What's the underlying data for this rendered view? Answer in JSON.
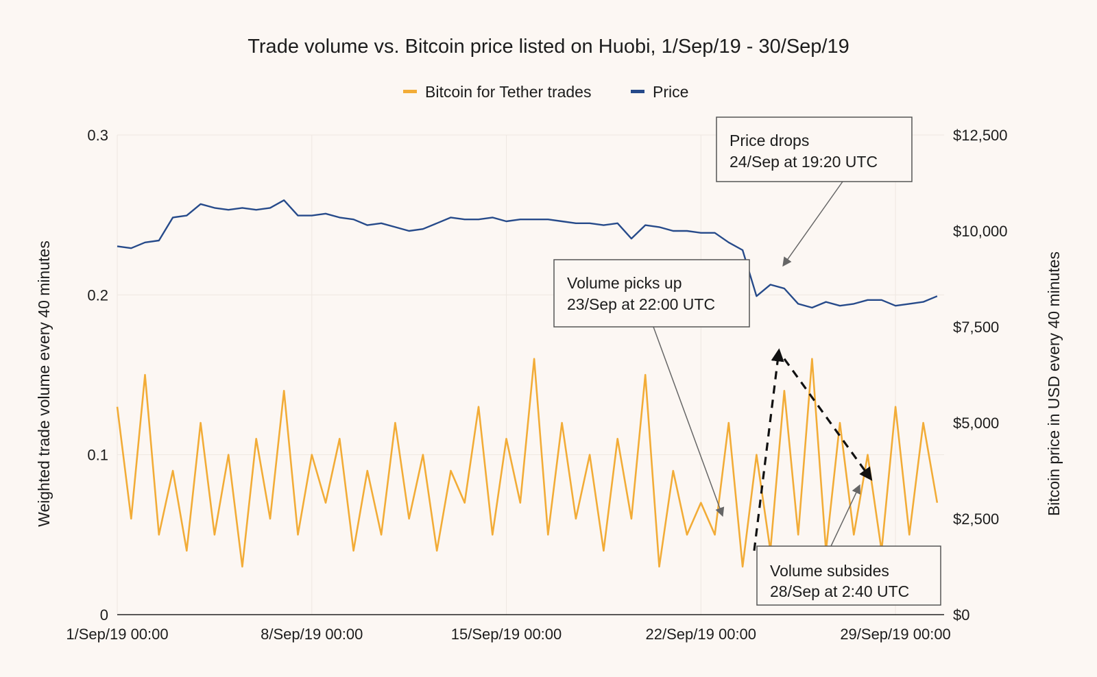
{
  "chart_data": {
    "type": "line",
    "title": "Trade volume vs. Bitcoin price listed on Huobi, 1/Sep/19 - 30/Sep/19",
    "legend": {
      "position": "top-center",
      "entries": [
        "Bitcoin for Tether trades",
        "Price"
      ]
    },
    "grid": true,
    "x_axis": {
      "type": "date",
      "range": [
        "2019-09-01 00:00",
        "2019-09-30 18:00"
      ],
      "ticks": [
        "1/Sep/19 00:00",
        "8/Sep/19 00:00",
        "15/Sep/19 00:00",
        "22/Sep/19 00:00",
        "29/Sep/19 00:00"
      ],
      "tick_dates": [
        "2019-09-01 00:00",
        "2019-09-08 00:00",
        "2019-09-15 00:00",
        "2019-09-22 00:00",
        "2019-09-29 00:00"
      ]
    },
    "y_axis_left": {
      "label": "Weighted trade volume every 40 minutes",
      "range": [
        0,
        0.3
      ],
      "ticks": [
        "0",
        "0.1",
        "0.2",
        "0.3"
      ],
      "tick_values": [
        0,
        0.1,
        0.2,
        0.3
      ]
    },
    "y_axis_right": {
      "label": "Bitcoin price in USD every 40 minutes",
      "range": [
        0,
        12500
      ],
      "ticks": [
        "$0",
        "$2,500",
        "$5,000",
        "$7,500",
        "$10,000",
        "$12,500"
      ],
      "tick_values": [
        0,
        2500,
        5000,
        7500,
        10000,
        12500
      ]
    },
    "series": [
      {
        "name": "Bitcoin for Tether trades",
        "axis": "left",
        "color": "#f2ac37",
        "x": [
          "2019-09-01 00:00",
          "2019-09-01 12:00",
          "2019-09-02 00:00",
          "2019-09-02 12:00",
          "2019-09-03 00:00",
          "2019-09-03 12:00",
          "2019-09-04 00:00",
          "2019-09-04 12:00",
          "2019-09-05 00:00",
          "2019-09-05 12:00",
          "2019-09-06 00:00",
          "2019-09-06 12:00",
          "2019-09-07 00:00",
          "2019-09-07 12:00",
          "2019-09-08 00:00",
          "2019-09-08 12:00",
          "2019-09-09 00:00",
          "2019-09-09 12:00",
          "2019-09-10 00:00",
          "2019-09-10 12:00",
          "2019-09-11 00:00",
          "2019-09-11 12:00",
          "2019-09-12 00:00",
          "2019-09-12 12:00",
          "2019-09-13 00:00",
          "2019-09-13 12:00",
          "2019-09-14 00:00",
          "2019-09-14 12:00",
          "2019-09-15 00:00",
          "2019-09-15 12:00",
          "2019-09-16 00:00",
          "2019-09-16 12:00",
          "2019-09-17 00:00",
          "2019-09-17 12:00",
          "2019-09-18 00:00",
          "2019-09-18 12:00",
          "2019-09-19 00:00",
          "2019-09-19 12:00",
          "2019-09-20 00:00",
          "2019-09-20 12:00",
          "2019-09-21 00:00",
          "2019-09-21 12:00",
          "2019-09-22 00:00",
          "2019-09-22 12:00",
          "2019-09-23 00:00",
          "2019-09-23 12:00",
          "2019-09-24 00:00",
          "2019-09-24 12:00",
          "2019-09-25 00:00",
          "2019-09-25 12:00",
          "2019-09-26 00:00",
          "2019-09-26 12:00",
          "2019-09-27 00:00",
          "2019-09-27 12:00",
          "2019-09-28 00:00",
          "2019-09-28 12:00",
          "2019-09-29 00:00",
          "2019-09-29 12:00",
          "2019-09-30 00:00",
          "2019-09-30 12:00"
        ],
        "values": [
          0.13,
          0.06,
          0.15,
          0.05,
          0.09,
          0.04,
          0.12,
          0.05,
          0.1,
          0.03,
          0.11,
          0.06,
          0.14,
          0.05,
          0.1,
          0.07,
          0.11,
          0.04,
          0.09,
          0.05,
          0.12,
          0.06,
          0.1,
          0.04,
          0.09,
          0.07,
          0.13,
          0.05,
          0.11,
          0.07,
          0.16,
          0.05,
          0.12,
          0.06,
          0.1,
          0.04,
          0.11,
          0.06,
          0.15,
          0.03,
          0.09,
          0.05,
          0.07,
          0.05,
          0.12,
          0.03,
          0.1,
          0.04,
          0.14,
          0.05,
          0.16,
          0.04,
          0.12,
          0.05,
          0.1,
          0.04,
          0.13,
          0.05,
          0.12,
          0.07
        ]
      },
      {
        "name": "Price",
        "axis": "right",
        "color": "#264a8a",
        "x": [
          "2019-09-01 00:00",
          "2019-09-01 12:00",
          "2019-09-02 00:00",
          "2019-09-02 12:00",
          "2019-09-03 00:00",
          "2019-09-03 12:00",
          "2019-09-04 00:00",
          "2019-09-04 12:00",
          "2019-09-05 00:00",
          "2019-09-05 12:00",
          "2019-09-06 00:00",
          "2019-09-06 12:00",
          "2019-09-07 00:00",
          "2019-09-07 12:00",
          "2019-09-08 00:00",
          "2019-09-08 12:00",
          "2019-09-09 00:00",
          "2019-09-09 12:00",
          "2019-09-10 00:00",
          "2019-09-10 12:00",
          "2019-09-11 00:00",
          "2019-09-11 12:00",
          "2019-09-12 00:00",
          "2019-09-12 12:00",
          "2019-09-13 00:00",
          "2019-09-13 12:00",
          "2019-09-14 00:00",
          "2019-09-14 12:00",
          "2019-09-15 00:00",
          "2019-09-15 12:00",
          "2019-09-16 00:00",
          "2019-09-16 12:00",
          "2019-09-17 00:00",
          "2019-09-17 12:00",
          "2019-09-18 00:00",
          "2019-09-18 12:00",
          "2019-09-19 00:00",
          "2019-09-19 12:00",
          "2019-09-20 00:00",
          "2019-09-20 12:00",
          "2019-09-21 00:00",
          "2019-09-21 12:00",
          "2019-09-22 00:00",
          "2019-09-22 12:00",
          "2019-09-23 00:00",
          "2019-09-23 12:00",
          "2019-09-24 00:00",
          "2019-09-24 12:00",
          "2019-09-25 00:00",
          "2019-09-25 12:00",
          "2019-09-26 00:00",
          "2019-09-26 12:00",
          "2019-09-27 00:00",
          "2019-09-27 12:00",
          "2019-09-28 00:00",
          "2019-09-28 12:00",
          "2019-09-29 00:00",
          "2019-09-29 12:00",
          "2019-09-30 00:00",
          "2019-09-30 12:00"
        ],
        "values": [
          9600,
          9550,
          9700,
          9750,
          10350,
          10400,
          10700,
          10600,
          10550,
          10600,
          10550,
          10600,
          10800,
          10400,
          10400,
          10450,
          10350,
          10300,
          10150,
          10200,
          10100,
          10000,
          10050,
          10200,
          10350,
          10300,
          10300,
          10350,
          10250,
          10300,
          10300,
          10300,
          10250,
          10200,
          10200,
          10150,
          10200,
          9800,
          10150,
          10100,
          10000,
          10000,
          9950,
          9950,
          9700,
          9500,
          8300,
          8600,
          8500,
          8100,
          8000,
          8150,
          8050,
          8100,
          8200,
          8200,
          8050,
          8100,
          8150,
          8300
        ]
      }
    ],
    "annotations": [
      {
        "lines": [
          "Price drops",
          "24/Sep at 19:20 UTC"
        ],
        "points_to": "2019-09-24 19:20",
        "series": "Price",
        "box": "upper-right"
      },
      {
        "lines": [
          "Volume picks up",
          "23/Sep at 22:00 UTC"
        ],
        "points_to": "2019-09-23 22:00",
        "series": "Bitcoin for Tether trades",
        "box": "middle"
      },
      {
        "lines": [
          "Volume subsides",
          "28/Sep at 2:40 UTC"
        ],
        "points_to": "2019-09-28 02:40",
        "series": "Bitcoin for Tether trades",
        "box": "lower-right"
      }
    ],
    "trend_arrows": [
      {
        "from": {
          "x": "2019-09-23 22:00",
          "y": 0.04
        },
        "to": {
          "x": "2019-09-24 19:20",
          "y": 0.165
        },
        "style": "dashed"
      },
      {
        "from": {
          "x": "2019-09-25 00:00",
          "y": 0.16
        },
        "to": {
          "x": "2019-09-28 02:40",
          "y": 0.085
        },
        "style": "dashed"
      }
    ]
  }
}
